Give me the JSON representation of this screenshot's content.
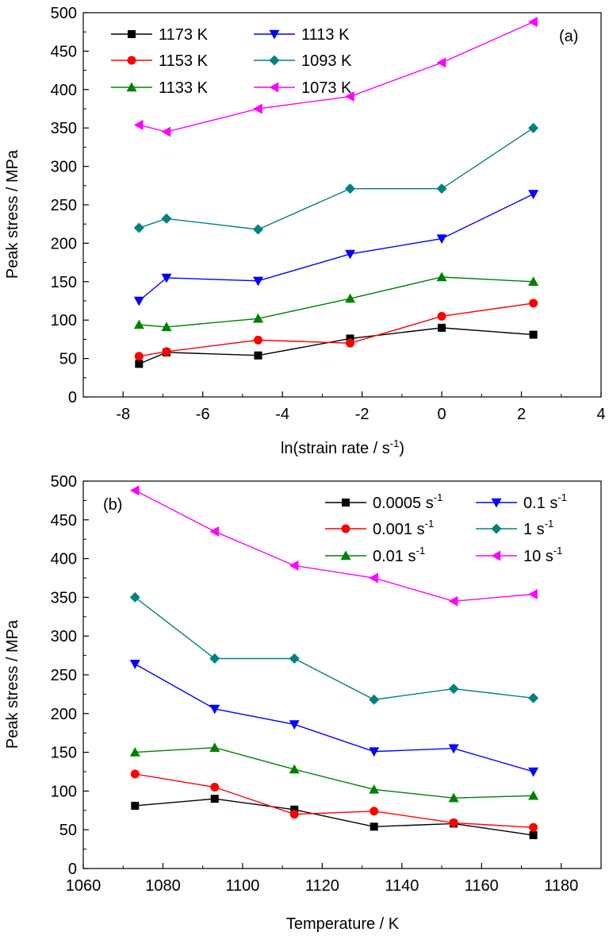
{
  "chart_data": [
    {
      "type": "line",
      "panel_label": "(a)",
      "title": "",
      "xlabel": "ln(strain rate / s",
      "xlabel_sup": "-1",
      "xlabel_end": ")",
      "ylabel": "Peak stress / MPa",
      "xlim": [
        -9,
        4
      ],
      "ylim": [
        0,
        500
      ],
      "xticks": [
        -8,
        -6,
        -4,
        -2,
        0,
        2,
        4
      ],
      "yticks": [
        0,
        50,
        100,
        150,
        200,
        250,
        300,
        350,
        400,
        450,
        500
      ],
      "x": [
        -7.6,
        -6.91,
        -4.61,
        -2.3,
        0,
        2.3
      ],
      "legend_position": "top-left",
      "grid": false,
      "series": [
        {
          "name": "1173 K",
          "values": [
            43,
            58,
            54,
            76,
            90,
            81
          ],
          "color": "#000000",
          "marker": "square"
        },
        {
          "name": "1153 K",
          "values": [
            53,
            59,
            74,
            70,
            105,
            122
          ],
          "color": "#ff0000",
          "marker": "circle"
        },
        {
          "name": "1133 K",
          "values": [
            94,
            91,
            102,
            128,
            156,
            150
          ],
          "color": "#008000",
          "marker": "triangle-up"
        },
        {
          "name": "1113 K",
          "values": [
            125,
            155,
            151,
            186,
            206,
            264
          ],
          "color": "#0000ff",
          "marker": "triangle-down"
        },
        {
          "name": "1093 K",
          "values": [
            220,
            232,
            218,
            271,
            271,
            350
          ],
          "color": "#008080",
          "marker": "diamond"
        },
        {
          "name": "1073 K",
          "values": [
            354,
            345,
            375,
            391,
            435,
            488
          ],
          "color": "#ff00ff",
          "marker": "triangle-left"
        }
      ]
    },
    {
      "type": "line",
      "panel_label": "(b)",
      "title": "",
      "xlabel": "Temperature / K",
      "ylabel": "Peak stress / MPa",
      "xlim": [
        1060,
        1190
      ],
      "ylim": [
        0,
        500
      ],
      "xticks": [
        1060,
        1080,
        1100,
        1120,
        1140,
        1160,
        1180
      ],
      "yticks": [
        0,
        50,
        100,
        150,
        200,
        250,
        300,
        350,
        400,
        450,
        500
      ],
      "x": [
        1073,
        1093,
        1113,
        1133,
        1153,
        1173
      ],
      "legend_position": "top-right",
      "grid": false,
      "series": [
        {
          "name": "0.0005 s",
          "sup": "-1",
          "values": [
            81,
            90,
            76,
            54,
            58,
            43
          ],
          "color": "#000000",
          "marker": "square"
        },
        {
          "name": "0.001 s",
          "sup": "-1",
          "values": [
            122,
            105,
            70,
            74,
            59,
            53
          ],
          "color": "#ff0000",
          "marker": "circle"
        },
        {
          "name": "0.01 s",
          "sup": "-1",
          "values": [
            150,
            156,
            128,
            102,
            91,
            94
          ],
          "color": "#008000",
          "marker": "triangle-up"
        },
        {
          "name": "0.1 s",
          "sup": "-1",
          "values": [
            264,
            206,
            186,
            151,
            155,
            125
          ],
          "color": "#0000ff",
          "marker": "triangle-down"
        },
        {
          "name": "1 s",
          "sup": "-1",
          "values": [
            350,
            271,
            271,
            218,
            232,
            220
          ],
          "color": "#008080",
          "marker": "diamond"
        },
        {
          "name": "10 s",
          "sup": "-1",
          "values": [
            488,
            435,
            391,
            375,
            345,
            354
          ],
          "color": "#ff00ff",
          "marker": "triangle-left"
        }
      ]
    }
  ]
}
